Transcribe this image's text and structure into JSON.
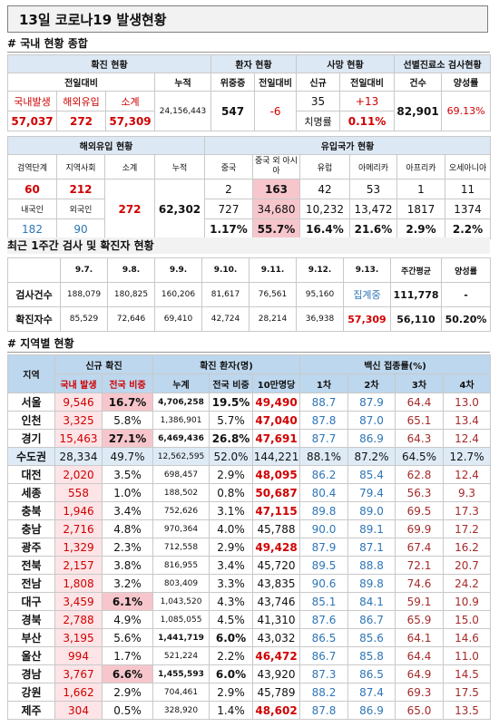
{
  "header": {
    "title": "13일 코로나19 발생현황"
  },
  "summary": {
    "section": "# 국내 현황 종합",
    "groups": [
      "확진 현황",
      "환자 현황",
      "사망 현황",
      "선별진료소 검사현황"
    ],
    "columns": [
      "전일대비",
      "누적",
      "위중증",
      "전일대비",
      "신규",
      "전일대비",
      "건수",
      "양성률"
    ],
    "labels": [
      "국내발생",
      "해외유입",
      "소계"
    ],
    "values": [
      "57,037",
      "272",
      "57,309"
    ],
    "cumulative": "24,156,443",
    "critical": "547",
    "critical_change": "-6",
    "deaths": "35",
    "deaths_change": "+13",
    "fatality_label": "치명률",
    "fatality": "0.11%",
    "tests": "82,901",
    "positivity": "69.13%"
  },
  "imports": {
    "groups": [
      "해외유입 현황",
      "유입국가 현황"
    ],
    "columns": [
      "검역단계",
      "지역사회",
      "소계",
      "누적",
      "중국",
      "중국 외 아시아",
      "유럽",
      "아메리카",
      "아프리카",
      "오세아니아"
    ],
    "row1": [
      "60",
      "212",
      "2",
      "163",
      "42",
      "53",
      "1",
      "11"
    ],
    "subtotal": "272",
    "cumulative": "62,302",
    "row2": [
      "내국인",
      "외국인",
      "727",
      "34,680",
      "10,232",
      "13,472",
      "1817",
      "1374"
    ],
    "row3": [
      "182",
      "90",
      "1.17%",
      "55.7%",
      "16.4%",
      "21.6%",
      "2.9%",
      "2.2%"
    ]
  },
  "weekly": {
    "title": "최근 1주간 검사 및 확진자 현황",
    "columns": [
      "9.7.",
      "9.8.",
      "9.9.",
      "9.10.",
      "9.11.",
      "9.12.",
      "9.13.",
      "주간평균",
      "양성률"
    ],
    "rows": [
      {
        "label": "검사건수",
        "values": [
          "188,079",
          "180,825",
          "160,206",
          "81,617",
          "76,561",
          "95,160",
          "집계중",
          "111,778",
          "-"
        ]
      },
      {
        "label": "확진자수",
        "values": [
          "85,529",
          "72,646",
          "69,410",
          "42,724",
          "28,214",
          "36,938",
          "57,309",
          "56,110",
          "50.20%"
        ]
      }
    ]
  },
  "regional": {
    "section": "# 지역별 현황",
    "groups": [
      "지역",
      "신규 확진",
      "확진 환자(명)",
      "백신 접종률(%)"
    ],
    "columns": [
      "국내 발생",
      "전국 비중",
      "누계",
      "전국 비중",
      "10만명당",
      "1차",
      "2차",
      "3차",
      "4차"
    ],
    "rows": [
      [
        "서울",
        "9,546",
        "16.7%",
        "4,706,258",
        "19.5%",
        "49,490",
        "88.7",
        "87.9",
        "64.4",
        "13.0"
      ],
      [
        "인천",
        "3,325",
        "5.8%",
        "1,386,901",
        "5.7%",
        "47,040",
        "87.8",
        "87.0",
        "65.1",
        "13.4"
      ],
      [
        "경기",
        "15,463",
        "27.1%",
        "6,469,436",
        "26.8%",
        "47,691",
        "87.7",
        "86.9",
        "64.3",
        "12.4"
      ],
      [
        "수도권",
        "28,334",
        "49.7%",
        "12,562,595",
        "52.0%",
        "144,221",
        "88.1%",
        "87.2%",
        "64.5%",
        "12.7%"
      ],
      [
        "대전",
        "2,020",
        "3.5%",
        "698,457",
        "2.9%",
        "48,095",
        "86.2",
        "85.4",
        "62.8",
        "12.4"
      ],
      [
        "세종",
        "558",
        "1.0%",
        "188,502",
        "0.8%",
        "50,687",
        "80.4",
        "79.4",
        "56.3",
        "9.3"
      ],
      [
        "충북",
        "1,946",
        "3.4%",
        "752,626",
        "3.1%",
        "47,115",
        "89.8",
        "89.0",
        "69.5",
        "17.3"
      ],
      [
        "충남",
        "2,716",
        "4.8%",
        "970,364",
        "4.0%",
        "45,788",
        "90.0",
        "89.1",
        "69.9",
        "17.2"
      ],
      [
        "광주",
        "1,329",
        "2.3%",
        "712,558",
        "2.9%",
        "49,428",
        "87.9",
        "87.1",
        "67.4",
        "16.2"
      ],
      [
        "전북",
        "2,157",
        "3.8%",
        "816,955",
        "3.4%",
        "45,720",
        "89.5",
        "88.8",
        "72.1",
        "20.7"
      ],
      [
        "전남",
        "1,808",
        "3.2%",
        "803,409",
        "3.3%",
        "43,835",
        "90.6",
        "89.8",
        "74.6",
        "24.2"
      ],
      [
        "대구",
        "3,459",
        "6.1%",
        "1,043,520",
        "4.3%",
        "43,746",
        "85.1",
        "84.1",
        "59.1",
        "10.9"
      ],
      [
        "경북",
        "2,788",
        "4.9%",
        "1,085,055",
        "4.5%",
        "41,310",
        "87.6",
        "86.7",
        "65.9",
        "15.0"
      ],
      [
        "부산",
        "3,195",
        "5.6%",
        "1,441,719",
        "6.0%",
        "43,032",
        "86.5",
        "85.6",
        "64.1",
        "14.6"
      ],
      [
        "울산",
        "994",
        "1.7%",
        "521,224",
        "2.2%",
        "46,472",
        "86.7",
        "85.8",
        "64.4",
        "11.0"
      ],
      [
        "경남",
        "3,767",
        "6.6%",
        "1,455,593",
        "6.0%",
        "43,920",
        "87.3",
        "86.5",
        "64.9",
        "14.5"
      ],
      [
        "강원",
        "1,662",
        "2.9%",
        "704,461",
        "2.9%",
        "45,789",
        "88.2",
        "87.4",
        "69.3",
        "17.5"
      ],
      [
        "제주",
        "304",
        "0.5%",
        "328,920",
        "1.4%",
        "48,602",
        "87.8",
        "86.9",
        "65.0",
        "13.5"
      ]
    ]
  }
}
